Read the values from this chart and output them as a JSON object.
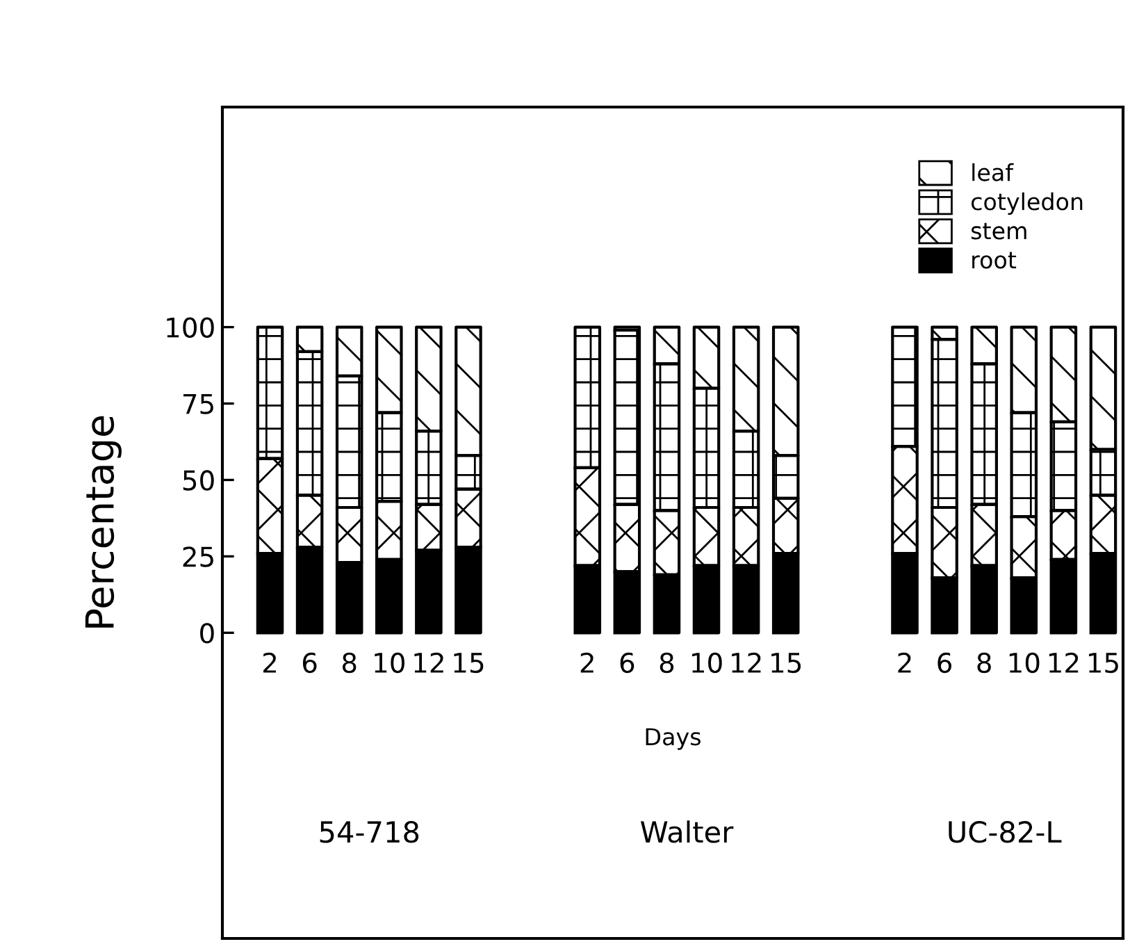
{
  "chart_data": {
    "type": "bar",
    "stacked": true,
    "ylabel": "Percentage",
    "xlabel": "Days",
    "categories": [
      "2",
      "6",
      "8",
      "10",
      "12",
      "15",
      null,
      null,
      "2",
      "6",
      "8",
      "10",
      "12",
      "15",
      null,
      null,
      "2",
      "6",
      "8",
      "10",
      "12",
      "15"
    ],
    "series": [
      {
        "name": "root",
        "color": "#000000",
        "values": [
          26,
          28,
          23,
          24,
          27,
          28,
          null,
          null,
          22,
          20,
          19,
          22,
          22,
          26,
          null,
          null,
          26,
          18,
          22,
          18,
          24,
          26
        ]
      },
      {
        "name": "stem",
        "color": "#ffffff",
        "values": [
          31,
          17,
          18,
          19,
          15,
          19,
          null,
          null,
          32,
          22,
          21,
          19,
          19,
          18,
          null,
          null,
          35,
          23,
          20,
          20,
          16,
          19
        ]
      },
      {
        "name": "cotyledon",
        "color": "#ffffff",
        "values": [
          43,
          47,
          43,
          29,
          24,
          11,
          null,
          null,
          46,
          57,
          48,
          39,
          25,
          14,
          null,
          null,
          39,
          55,
          46,
          34,
          29,
          15
        ]
      },
      {
        "name": "leaf",
        "color": "#ffffff",
        "values": [
          null,
          8,
          16,
          28,
          34,
          42,
          null,
          null,
          null,
          1,
          12,
          20,
          34,
          42,
          null,
          null,
          null,
          4,
          12,
          28,
          31,
          40
        ]
      }
    ],
    "annotations": [
      "54-718",
      "Walter",
      "UC-82-L"
    ],
    "ylim": [
      -100,
      172
    ],
    "yticks": [
      0,
      25,
      50,
      75,
      100
    ],
    "legend": "top right",
    "grid": false
  }
}
